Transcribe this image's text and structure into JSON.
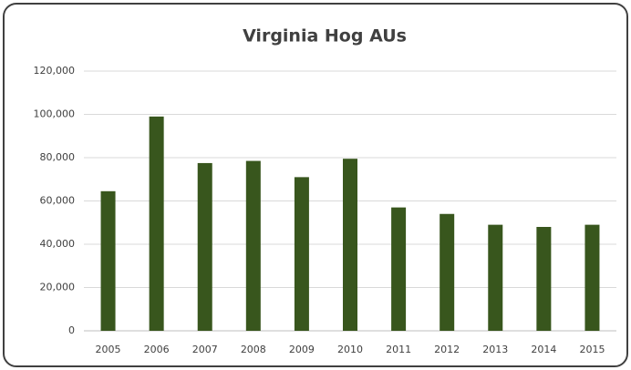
{
  "chart_data": {
    "type": "bar",
    "title": "Virginia Hog AUs",
    "categories": [
      "2005",
      "2006",
      "2007",
      "2008",
      "2009",
      "2010",
      "2011",
      "2012",
      "2013",
      "2014",
      "2015"
    ],
    "values": [
      64500,
      99000,
      77500,
      78500,
      71000,
      79500,
      57000,
      54000,
      49000,
      48000,
      49000
    ],
    "color": "#38561d",
    "ylim": [
      0,
      120000
    ],
    "yticks": [
      0,
      {
        "value": 20000,
        "label": "20,000"
      },
      {
        "value": 40000,
        "label": "40,000"
      },
      {
        "value": 60000,
        "label": "60,000"
      },
      {
        "value": 80000,
        "label": "80,000"
      },
      {
        "value": 100000,
        "label": "100,000"
      },
      {
        "value": 120000,
        "label": "120,000"
      }
    ],
    "grid": true
  }
}
